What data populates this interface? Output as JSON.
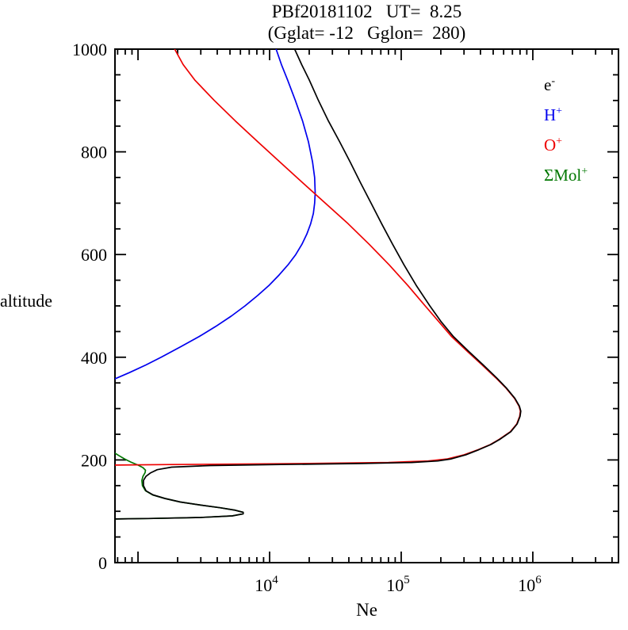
{
  "title": "PBf20181102   UT=  8.25",
  "subtitle": "(Gglat= -12   Gglon=  280)",
  "ylabel": "altitude",
  "xlabel": "Ne",
  "colors": {
    "electron": "#000000",
    "hydrogen_ion": "#0000ee",
    "oxygen_ion": "#ee0000",
    "molecular_ion": "#007700",
    "axis": "#000000",
    "background": "#ffffff"
  },
  "chart_data": {
    "type": "line",
    "title": "PBf20181102   UT=  8.25",
    "subtitle": "(Gglat= -12   Gglon=  280)",
    "xlabel": "Ne",
    "ylabel": "altitude",
    "x_scale": "log",
    "xlim_log10": [
      2.825,
      6.651
    ],
    "ylim": [
      0,
      1000
    ],
    "x_labeled_tick_exponents": [
      4,
      5,
      6
    ],
    "x_major_tick_exponents": [
      3,
      4,
      5,
      6
    ],
    "y_major_ticks": [
      0,
      200,
      400,
      600,
      800,
      1000
    ],
    "y_minor_step": 50,
    "grid": false,
    "legend_position": "top-right-inside",
    "legend": [
      {
        "base": "e",
        "sup": "-",
        "color": "#000000",
        "name": "electron"
      },
      {
        "base": "H",
        "sup": "+",
        "color": "#0000ee",
        "name": "hydrogen-ion"
      },
      {
        "base": "O",
        "sup": "+",
        "color": "#ee0000",
        "name": "oxygen-ion"
      },
      {
        "base": "ΣMol",
        "sup": "+",
        "color": "#007700",
        "name": "molecular-ions"
      }
    ],
    "series": [
      {
        "name": "molecular-ions",
        "label": "ΣMol+",
        "color": "#007700",
        "points_alt_ne": [
          [
            85,
            670
          ],
          [
            86,
            1200
          ],
          [
            88,
            3000
          ],
          [
            91,
            5200
          ],
          [
            95,
            6300
          ],
          [
            98,
            6300
          ],
          [
            102,
            5500
          ],
          [
            107,
            4200
          ],
          [
            112,
            3000
          ],
          [
            118,
            2100
          ],
          [
            125,
            1600
          ],
          [
            132,
            1290
          ],
          [
            140,
            1140
          ],
          [
            150,
            1080
          ],
          [
            160,
            1070
          ],
          [
            168,
            1090
          ],
          [
            175,
            1130
          ],
          [
            180,
            1140
          ],
          [
            185,
            1090
          ],
          [
            190,
            1000
          ],
          [
            196,
            880
          ],
          [
            202,
            790
          ],
          [
            208,
            720
          ],
          [
            213,
            670
          ]
        ]
      },
      {
        "name": "hydrogen-ion",
        "label": "H+",
        "color": "#0000ee",
        "points_alt_ne": [
          [
            358,
            670
          ],
          [
            370,
            860
          ],
          [
            385,
            1150
          ],
          [
            400,
            1500
          ],
          [
            420,
            2100
          ],
          [
            440,
            2900
          ],
          [
            460,
            3900
          ],
          [
            480,
            5100
          ],
          [
            500,
            6500
          ],
          [
            520,
            8100
          ],
          [
            540,
            9900
          ],
          [
            560,
            11800
          ],
          [
            580,
            13800
          ],
          [
            600,
            15800
          ],
          [
            620,
            17600
          ],
          [
            640,
            19200
          ],
          [
            660,
            20500
          ],
          [
            680,
            21500
          ],
          [
            700,
            22000
          ],
          [
            720,
            22200
          ],
          [
            750,
            22000
          ],
          [
            780,
            21200
          ],
          [
            820,
            19700
          ],
          [
            860,
            17800
          ],
          [
            900,
            15700
          ],
          [
            940,
            13700
          ],
          [
            970,
            12300
          ],
          [
            1000,
            11200
          ]
        ]
      },
      {
        "name": "oxygen-ion",
        "label": "O+",
        "color": "#ee0000",
        "points_alt_ne": [
          [
            190,
            670
          ],
          [
            191,
            1800
          ],
          [
            192,
            6000
          ],
          [
            193,
            20000
          ],
          [
            195,
            80000
          ],
          [
            198,
            160000
          ],
          [
            202,
            225000
          ],
          [
            210,
            300000
          ],
          [
            220,
            385000
          ],
          [
            230,
            475000
          ],
          [
            240,
            555000
          ],
          [
            255,
            675000
          ],
          [
            270,
            755000
          ],
          [
            285,
            795000
          ],
          [
            295,
            805000
          ],
          [
            305,
            785000
          ],
          [
            320,
            725000
          ],
          [
            340,
            625000
          ],
          [
            360,
            523000
          ],
          [
            385,
            412000
          ],
          [
            410,
            322000
          ],
          [
            440,
            242000
          ],
          [
            470,
            192000
          ],
          [
            500,
            152000
          ],
          [
            540,
            112000
          ],
          [
            580,
            81000
          ],
          [
            620,
            57000
          ],
          [
            660,
            39500
          ],
          [
            700,
            26500
          ],
          [
            740,
            17800
          ],
          [
            780,
            12000
          ],
          [
            820,
            8100
          ],
          [
            860,
            5500
          ],
          [
            900,
            3800
          ],
          [
            940,
            2700
          ],
          [
            970,
            2200
          ],
          [
            1000,
            1900
          ]
        ]
      },
      {
        "name": "electron",
        "label": "e-",
        "color": "#000000",
        "points_alt_ne": [
          [
            85,
            670
          ],
          [
            86,
            1200
          ],
          [
            88,
            3000
          ],
          [
            91,
            5200
          ],
          [
            95,
            6300
          ],
          [
            98,
            6300
          ],
          [
            102,
            5500
          ],
          [
            107,
            4200
          ],
          [
            112,
            3000
          ],
          [
            118,
            2100
          ],
          [
            125,
            1600
          ],
          [
            132,
            1300
          ],
          [
            140,
            1150
          ],
          [
            150,
            1100
          ],
          [
            160,
            1100
          ],
          [
            168,
            1150
          ],
          [
            175,
            1250
          ],
          [
            181,
            1400
          ],
          [
            186,
            1800
          ],
          [
            189,
            3500
          ],
          [
            191,
            12000
          ],
          [
            193,
            50000
          ],
          [
            195,
            120000
          ],
          [
            198,
            190000
          ],
          [
            202,
            240000
          ],
          [
            210,
            310000
          ],
          [
            220,
            390000
          ],
          [
            230,
            480000
          ],
          [
            240,
            560000
          ],
          [
            255,
            680000
          ],
          [
            270,
            760000
          ],
          [
            285,
            800000
          ],
          [
            295,
            810000
          ],
          [
            305,
            790000
          ],
          [
            320,
            730000
          ],
          [
            340,
            630000
          ],
          [
            360,
            530000
          ],
          [
            385,
            420000
          ],
          [
            410,
            330000
          ],
          [
            440,
            250000
          ],
          [
            470,
            200000
          ],
          [
            500,
            165000
          ],
          [
            540,
            130000
          ],
          [
            580,
            105000
          ],
          [
            620,
            86000
          ],
          [
            660,
            71000
          ],
          [
            700,
            59000
          ],
          [
            740,
            49000
          ],
          [
            780,
            41000
          ],
          [
            820,
            34000
          ],
          [
            860,
            28000
          ],
          [
            900,
            23500
          ],
          [
            940,
            20000
          ],
          [
            970,
            17500
          ],
          [
            1000,
            15500
          ]
        ]
      }
    ]
  }
}
